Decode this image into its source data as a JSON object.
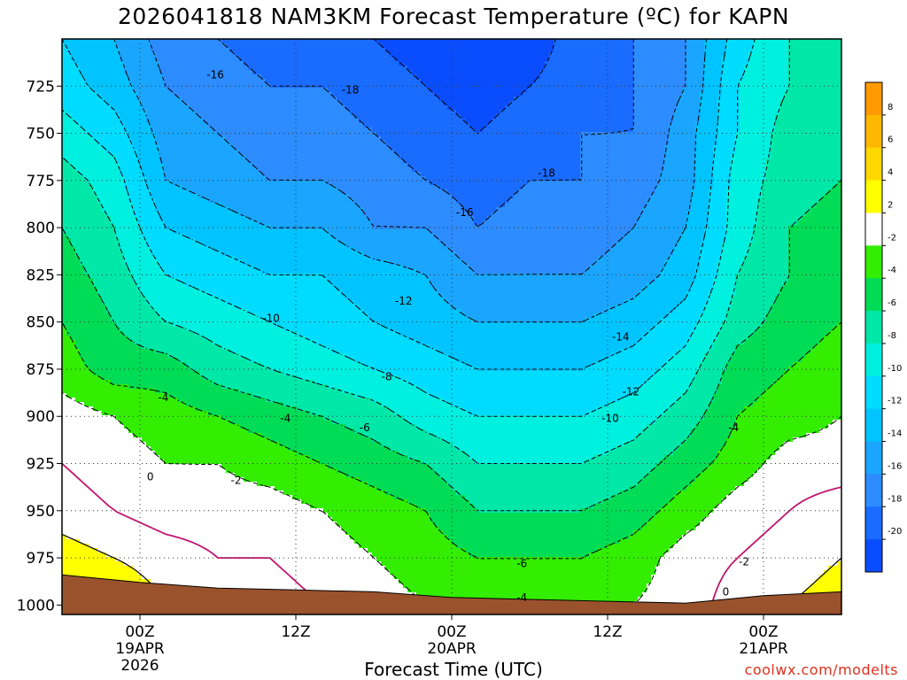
{
  "title": "2026041818 NAM3KM Forecast Temperature (ºC) for KAPN",
  "xlabel": "Forecast Time (UTC)",
  "credit": "coolwx.com/modelts",
  "colors": {
    "ground": "#9a522d",
    "warm_zero_line": "#c0166e",
    "band_colors": {
      "-22": "#0a4dff",
      "-20": "#1a6bff",
      "-18": "#2d8cff",
      "-16": "#1aa6ff",
      "-14": "#00c4ff",
      "-12": "#00dcff",
      "-10": "#00f0e0",
      "-8": "#00e8a8",
      "-6": "#00dc55",
      "-4": "#33ee00",
      "-2": "#ffffff",
      "0": "#ffffff",
      "2": "#ffff00",
      "4": "#ffd800",
      "6": "#ffb800",
      "8": "#ff9a00"
    }
  },
  "chart_data": {
    "type": "heatmap",
    "title": "2026041818 NAM3KM Forecast Temperature (ºC) for KAPN",
    "xlabel": "Forecast Time (UTC)",
    "ylabel": "",
    "x_ticks": [
      {
        "lines": [
          "00Z",
          "19APR",
          "2026"
        ],
        "hour": 6
      },
      {
        "lines": [
          "12Z"
        ],
        "hour": 18
      },
      {
        "lines": [
          "00Z",
          "20APR"
        ],
        "hour": 30
      },
      {
        "lines": [
          "12Z"
        ],
        "hour": 42
      },
      {
        "lines": [
          "00Z",
          "21APR"
        ],
        "hour": 54
      }
    ],
    "xlim": [
      0,
      60
    ],
    "y_ticks": [
      725,
      750,
      775,
      800,
      825,
      850,
      875,
      900,
      925,
      950,
      975,
      1000
    ],
    "ylim": [
      1005,
      700
    ],
    "colorbar": {
      "labels": [
        8,
        6,
        4,
        2,
        -2,
        -4,
        -6,
        -8,
        -10,
        -12,
        -14,
        -16,
        -18,
        -20
      ],
      "bands": [
        {
          "from": 8,
          "to": 10,
          "color": "#ff9a00"
        },
        {
          "from": 6,
          "to": 8,
          "color": "#ffb800"
        },
        {
          "from": 4,
          "to": 6,
          "color": "#ffd800"
        },
        {
          "from": 2,
          "to": 4,
          "color": "#ffff00"
        },
        {
          "from": -2,
          "to": 2,
          "color": "#ffffff"
        },
        {
          "from": -4,
          "to": -2,
          "color": "#33ee00"
        },
        {
          "from": -6,
          "to": -4,
          "color": "#00dc55"
        },
        {
          "from": -8,
          "to": -6,
          "color": "#00e8a8"
        },
        {
          "from": -10,
          "to": -8,
          "color": "#00f0e0"
        },
        {
          "from": -12,
          "to": -10,
          "color": "#00dcff"
        },
        {
          "from": -14,
          "to": -12,
          "color": "#00c4ff"
        },
        {
          "from": -16,
          "to": -14,
          "color": "#1aa6ff"
        },
        {
          "from": -18,
          "to": -16,
          "color": "#2d8cff"
        },
        {
          "from": -20,
          "to": -18,
          "color": "#1a6bff"
        },
        {
          "from": -22,
          "to": -20,
          "color": "#0a4dff"
        }
      ]
    },
    "contour_levels": [
      -22,
      -20,
      -18,
      -16,
      -14,
      -12,
      -10,
      -8,
      -6,
      -4,
      -2,
      0,
      2,
      4,
      6,
      8
    ],
    "contour_labels": [
      {
        "text": "-16",
        "hour": 11.8,
        "pressure": 719
      },
      {
        "text": "-18",
        "hour": 22.2,
        "pressure": 727
      },
      {
        "text": "-18",
        "hour": 37.3,
        "pressure": 771
      },
      {
        "text": "-16",
        "hour": 31.0,
        "pressure": 792
      },
      {
        "text": "-12",
        "hour": 26.3,
        "pressure": 839
      },
      {
        "text": "-10",
        "hour": 16.1,
        "pressure": 848
      },
      {
        "text": "-14",
        "hour": 43.0,
        "pressure": 858
      },
      {
        "text": "-8",
        "hour": 25.0,
        "pressure": 879
      },
      {
        "text": "-12",
        "hour": 43.8,
        "pressure": 887
      },
      {
        "text": "-4",
        "hour": 7.8,
        "pressure": 890
      },
      {
        "text": "-4",
        "hour": 17.2,
        "pressure": 901
      },
      {
        "text": "-10",
        "hour": 42.2,
        "pressure": 901
      },
      {
        "text": "-6",
        "hour": 23.3,
        "pressure": 906
      },
      {
        "text": "-4",
        "hour": 51.7,
        "pressure": 906
      },
      {
        "text": "0",
        "hour": 6.8,
        "pressure": 932
      },
      {
        "text": "-2",
        "hour": 13.4,
        "pressure": 934
      },
      {
        "text": "-6",
        "hour": 35.4,
        "pressure": 978
      },
      {
        "text": "-2",
        "hour": 52.5,
        "pressure": 977
      },
      {
        "text": "0",
        "hour": 51.1,
        "pressure": 993
      },
      {
        "text": "-4",
        "hour": 35.4,
        "pressure": 996
      }
    ],
    "fields": {
      "hours": [
        0,
        4,
        8,
        12,
        16,
        20,
        24,
        28,
        32,
        36,
        40,
        44,
        48,
        52,
        56,
        60
      ],
      "pressures": [
        700,
        725,
        750,
        775,
        800,
        825,
        850,
        875,
        900,
        925,
        950,
        975,
        1000
      ],
      "temperature": [
        [
          -12,
          -14,
          -17,
          -18,
          -19,
          -19,
          -20,
          -21,
          -22,
          -21,
          -19,
          -18,
          -16,
          -11,
          -8,
          -7
        ],
        [
          -11,
          -13,
          -16,
          -17,
          -18,
          -18,
          -19,
          -20,
          -21,
          -20,
          -19,
          -18,
          -16,
          -10,
          -8,
          -6
        ],
        [
          -9,
          -11,
          -15,
          -16,
          -17,
          -17,
          -18,
          -19,
          -20,
          -19,
          -18,
          -18,
          -15,
          -10,
          -7,
          -6
        ],
        [
          -7,
          -9,
          -14,
          -15,
          -16,
          -16,
          -17,
          -18,
          -19,
          -18,
          -18,
          -17,
          -15,
          -9,
          -7,
          -6
        ],
        [
          -6,
          -8,
          -12,
          -13,
          -14,
          -14,
          -16,
          -16,
          -18,
          -17,
          -17,
          -16,
          -14,
          -9,
          -6,
          -5
        ],
        [
          -5,
          -7,
          -10,
          -11,
          -12,
          -12,
          -13,
          -14,
          -16,
          -16,
          -16,
          -15,
          -13,
          -8,
          -6,
          -5
        ],
        [
          -4,
          -6,
          -8,
          -9,
          -10,
          -11,
          -12,
          -13,
          -14,
          -14,
          -14,
          -13,
          -11,
          -7,
          -5,
          -4
        ],
        [
          -3,
          -5,
          -5,
          -7,
          -8,
          -9,
          -10,
          -11,
          -12,
          -12,
          -12,
          -11,
          -9,
          -5,
          -4,
          -3
        ],
        [
          -1,
          -2,
          -3,
          -4,
          -5,
          -6,
          -7,
          -9,
          -10,
          -10,
          -10,
          -9,
          -7,
          -4,
          -3,
          -2
        ],
        [
          0,
          -1,
          -2,
          -2,
          -3,
          -4,
          -5,
          -6,
          -8,
          -8,
          -8,
          -7,
          -5,
          -3,
          -1,
          -1
        ],
        [
          1,
          0,
          -1,
          -1,
          -1,
          -2,
          -3,
          -4,
          -6,
          -6,
          -6,
          -5,
          -3,
          -1,
          0,
          1
        ],
        [
          3,
          2,
          1,
          0,
          0,
          -1,
          -2,
          -3,
          -4,
          -4,
          -4,
          -3,
          -1,
          0,
          1,
          2
        ],
        [
          5,
          4,
          2,
          1,
          1,
          0,
          -1,
          -2,
          -3,
          -3,
          -3,
          -2,
          -1,
          1,
          2,
          3
        ]
      ],
      "surface_pressure": [
        {
          "hour": 0,
          "pressure": 984
        },
        {
          "hour": 6,
          "pressure": 988
        },
        {
          "hour": 12,
          "pressure": 991
        },
        {
          "hour": 18,
          "pressure": 992
        },
        {
          "hour": 24,
          "pressure": 993
        },
        {
          "hour": 30,
          "pressure": 996
        },
        {
          "hour": 36,
          "pressure": 997
        },
        {
          "hour": 42,
          "pressure": 998
        },
        {
          "hour": 48,
          "pressure": 999
        },
        {
          "hour": 54,
          "pressure": 995
        },
        {
          "hour": 60,
          "pressure": 993
        }
      ]
    }
  }
}
